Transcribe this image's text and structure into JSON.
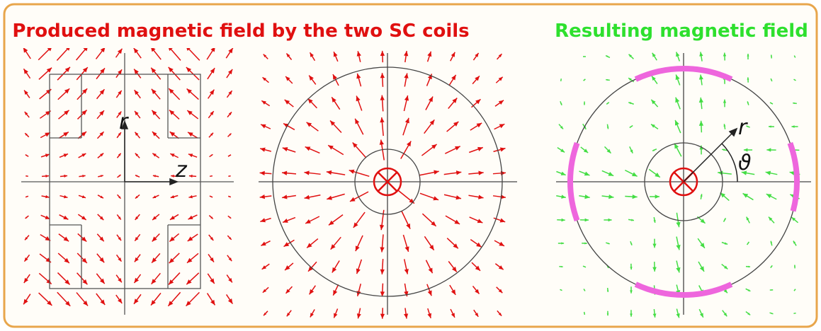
{
  "header": {
    "left_title": "Produced magnetic field by the two SC coils",
    "right_title": "Resulting magnetic field"
  },
  "panel_coils": {
    "r_label": "r",
    "z_label": "z"
  },
  "panel_result": {
    "r_label": "r",
    "angle_label": "ϑ"
  }
}
